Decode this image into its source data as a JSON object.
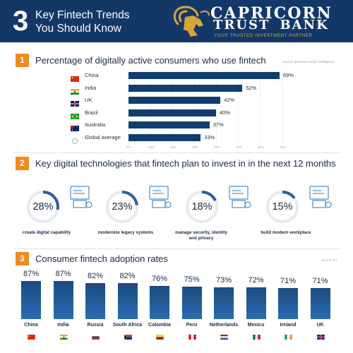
{
  "header": {
    "number": "3",
    "title_line1": "Key Fintech Trends",
    "title_line2": "You Should Know",
    "logo_name1": "CAPRICORN",
    "logo_name2_a": "TRUST",
    "logo_name2_b": "BANK",
    "logo_tagline": "YOUR TRUSTED INVESTMENT PARTNER"
  },
  "colors": {
    "header_bg": "#133868",
    "accent_orange": "#f28a1d",
    "bar_dark": "#113e6e",
    "donut_arc": "#2e5f94",
    "donut_track": "#e6ebf1",
    "logo_gold": "#d9a53a"
  },
  "sections": [
    {
      "number": "1",
      "title": "Percentage of digitally active consumers who use fintech",
      "source": "Source: Business Insider Intelligence"
    },
    {
      "number": "2",
      "title": "Key digital technologies that fintech plan to invest in in the next 12 months"
    },
    {
      "number": "3",
      "title": "Consumer fintech adoption rates",
      "source": "Source: EY"
    }
  ],
  "section1_flags": [
    "china-flag-icon",
    "india-flag-icon",
    "uk-flag-icon",
    "brazil-flag-icon",
    "australia-flag-icon",
    "globe-icon"
  ],
  "section2_icons": [
    "capability-chart-icon",
    "legacy-systems-icon",
    "security-checklist-icon",
    "workplace-network-icon"
  ],
  "chart_data": [
    {
      "type": "bar",
      "orientation": "horizontal",
      "categories": [
        "China",
        "India",
        "UK",
        "Brazil",
        "Australia",
        "Global average"
      ],
      "values": [
        69,
        52,
        42,
        40,
        37,
        33
      ],
      "value_labels": [
        "69%",
        "52%",
        "42%",
        "40%",
        "37%",
        "33%"
      ],
      "xlim": [
        0,
        70
      ],
      "xticks": [
        "0%",
        "10%",
        "20%",
        "30%",
        "40%",
        "50%",
        "60%",
        "70%"
      ],
      "grid": true
    },
    {
      "type": "pie",
      "style": "donut",
      "categories": [
        "create digital capability",
        "modernize legacy systems",
        "manage security, identity and privacy",
        "build modern workplace"
      ],
      "values": [
        28,
        23,
        18,
        15
      ],
      "value_labels": [
        "28%",
        "23%",
        "18%",
        "15%"
      ]
    },
    {
      "type": "bar",
      "categories": [
        "China",
        "India",
        "Russia",
        "South Africa",
        "Colombia",
        "Peru",
        "Netherlands",
        "Mexico",
        "Ireland",
        "UK"
      ],
      "values": [
        87,
        87,
        82,
        82,
        76,
        75,
        73,
        72,
        71,
        71
      ],
      "value_labels": [
        "87%",
        "87%",
        "82%",
        "82%",
        "76%",
        "75%",
        "73%",
        "72%",
        "71%",
        "71%"
      ],
      "flags": [
        "china-flag-icon",
        "india-flag-icon",
        "russia-flag-icon",
        "south-africa-flag-icon",
        "colombia-flag-icon",
        "peru-flag-icon",
        "netherlands-flag-icon",
        "mexico-flag-icon",
        "ireland-flag-icon",
        "uk-flag-icon"
      ]
    }
  ]
}
